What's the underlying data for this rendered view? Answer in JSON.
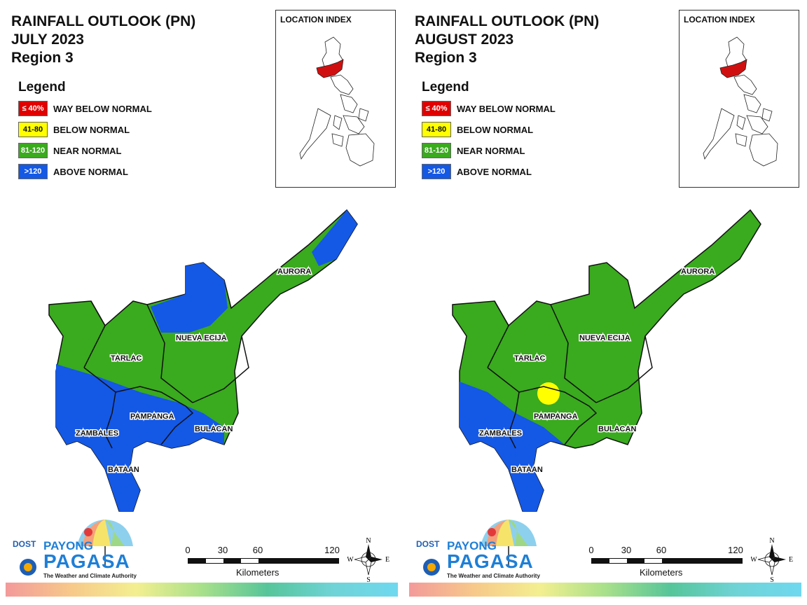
{
  "panels": [
    {
      "title": "RAINFALL OUTLOOK (PN)",
      "month": "JULY 2023",
      "region": "Region 3",
      "legend_title": "Legend",
      "legend": [
        {
          "range": "≤ 40%",
          "label": "WAY BELOW NORMAL",
          "color": "#e00000",
          "text_color": "#ffffff"
        },
        {
          "range": "41-80",
          "label": "BELOW NORMAL",
          "color": "#ffff00",
          "text_color": "#111111"
        },
        {
          "range": "81-120",
          "label": "NEAR NORMAL",
          "color": "#3aaa1e",
          "text_color": "#ffffff"
        },
        {
          "range": ">120",
          "label": "ABOVE NORMAL",
          "color": "#1458e6",
          "text_color": "#ffffff"
        }
      ],
      "inset_title": "LOCATION INDEX",
      "provinces": [
        "AURORA",
        "NUEVA ECIJA",
        "TARLAC",
        "PAMPANGA",
        "BULACAN",
        "ZAMBALES",
        "BATAAN"
      ],
      "outlook_by_province": {
        "AURORA": "NEAR NORMAL (ABOVE NORMAL in north)",
        "NUEVA ECIJA": "NEAR NORMAL / ABOVE NORMAL (north)",
        "TARLAC": "NEAR NORMAL / ABOVE NORMAL (south-west)",
        "PAMPANGA": "ABOVE NORMAL / NEAR NORMAL",
        "BULACAN": "NEAR NORMAL / ABOVE NORMAL",
        "ZAMBALES": "NEAR NORMAL / ABOVE NORMAL (south)",
        "BATAAN": "ABOVE NORMAL"
      }
    },
    {
      "title": "RAINFALL OUTLOOK (PN)",
      "month": "AUGUST 2023",
      "region": "Region 3",
      "legend_title": "Legend",
      "legend": [
        {
          "range": "≤ 40%",
          "label": "WAY BELOW NORMAL",
          "color": "#e00000",
          "text_color": "#ffffff"
        },
        {
          "range": "41-80",
          "label": "BELOW NORMAL",
          "color": "#ffff00",
          "text_color": "#111111"
        },
        {
          "range": "81-120",
          "label": "NEAR NORMAL",
          "color": "#3aaa1e",
          "text_color": "#ffffff"
        },
        {
          "range": ">120",
          "label": "ABOVE NORMAL",
          "color": "#1458e6",
          "text_color": "#ffffff"
        }
      ],
      "inset_title": "LOCATION INDEX",
      "provinces": [
        "AURORA",
        "NUEVA ECIJA",
        "TARLAC",
        "PAMPANGA",
        "BULACAN",
        "ZAMBALES",
        "BATAAN"
      ],
      "outlook_by_province": {
        "AURORA": "NEAR NORMAL",
        "NUEVA ECIJA": "NEAR NORMAL",
        "TARLAC": "NEAR NORMAL (small BELOW NORMAL spot at south)",
        "PAMPANGA": "NEAR NORMAL / ABOVE NORMAL (west)",
        "BULACAN": "NEAR NORMAL",
        "ZAMBALES": "NEAR NORMAL / ABOVE NORMAL (south)",
        "BATAAN": "ABOVE NORMAL"
      }
    }
  ],
  "logo": {
    "dost": "DOST",
    "payong": "PAYONG",
    "pagasa": "PAGASA",
    "tagline": "The Weather and Climate Authority"
  },
  "scale": {
    "ticks": [
      "0",
      "30",
      "60",
      "120"
    ],
    "unit": "Kilometers"
  },
  "compass": {
    "n": "N",
    "e": "E",
    "s": "S",
    "w": "W"
  },
  "colors": {
    "near_normal": "#3aaa1e",
    "above_normal": "#1458e6",
    "below_normal": "#ffff00",
    "way_below_normal": "#e00000",
    "inset_region": "#d01010"
  }
}
